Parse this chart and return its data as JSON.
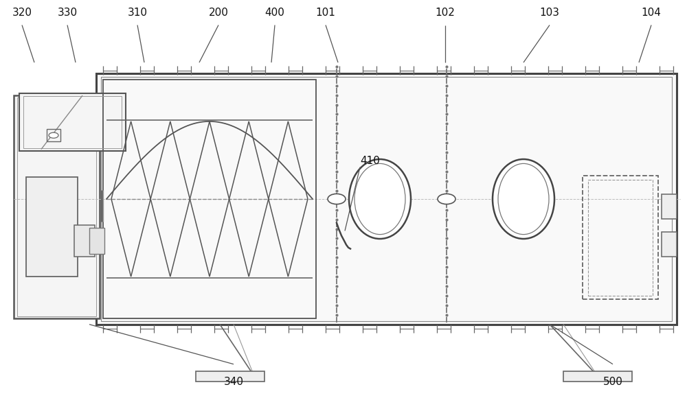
{
  "bg_color": "#ffffff",
  "lc": "#777777",
  "dc": "#444444",
  "label_fs": 11,
  "top_labels": {
    "320": 0.032,
    "330": 0.098,
    "310": 0.2,
    "200": 0.318,
    "400": 0.4,
    "101": 0.474,
    "102": 0.648,
    "103": 0.8,
    "104": 0.948
  },
  "bot_labels": {
    "340": 0.34,
    "500": 0.892
  },
  "label_410": [
    0.524,
    0.595
  ]
}
